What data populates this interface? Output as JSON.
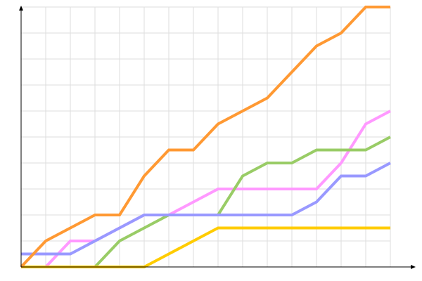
{
  "chart_data": {
    "type": "line",
    "title": "",
    "xlabel": "",
    "ylabel": "",
    "x": [
      0,
      1,
      2,
      3,
      4,
      5,
      6,
      7,
      8,
      9,
      10,
      11,
      12,
      13,
      14,
      15
    ],
    "xlim": [
      0,
      15.7
    ],
    "ylim": [
      0,
      10
    ],
    "grid": true,
    "legend": "none",
    "series": [
      {
        "color": "#ff99ff",
        "values": [
          0,
          0,
          1,
          1,
          1.5,
          2,
          2,
          2.5,
          3,
          3,
          3,
          3,
          3,
          4,
          5.5,
          6
        ]
      },
      {
        "color": "#99cc66",
        "values": [
          0,
          0,
          0,
          0,
          1,
          1.5,
          2,
          2,
          2,
          3.5,
          4,
          4,
          4.5,
          4.5,
          4.5,
          5
        ]
      },
      {
        "color": "#9999ff",
        "values": [
          0.5,
          0.5,
          0.5,
          1,
          1.5,
          2,
          2,
          2,
          2,
          2,
          2,
          2,
          2.5,
          3.5,
          3.5,
          4
        ]
      },
      {
        "color": "#ffcc00",
        "values": [
          0,
          0,
          0,
          0,
          0,
          0,
          0.5,
          1,
          1.5,
          1.5,
          1.5,
          1.5,
          1.5,
          1.5,
          1.5,
          1.5
        ]
      },
      {
        "color": "#ff9933",
        "values": [
          0,
          1,
          1.5,
          2,
          2,
          3.5,
          4.5,
          4.5,
          5.5,
          6,
          6.5,
          7.5,
          8.5,
          9,
          10,
          10
        ]
      }
    ]
  }
}
